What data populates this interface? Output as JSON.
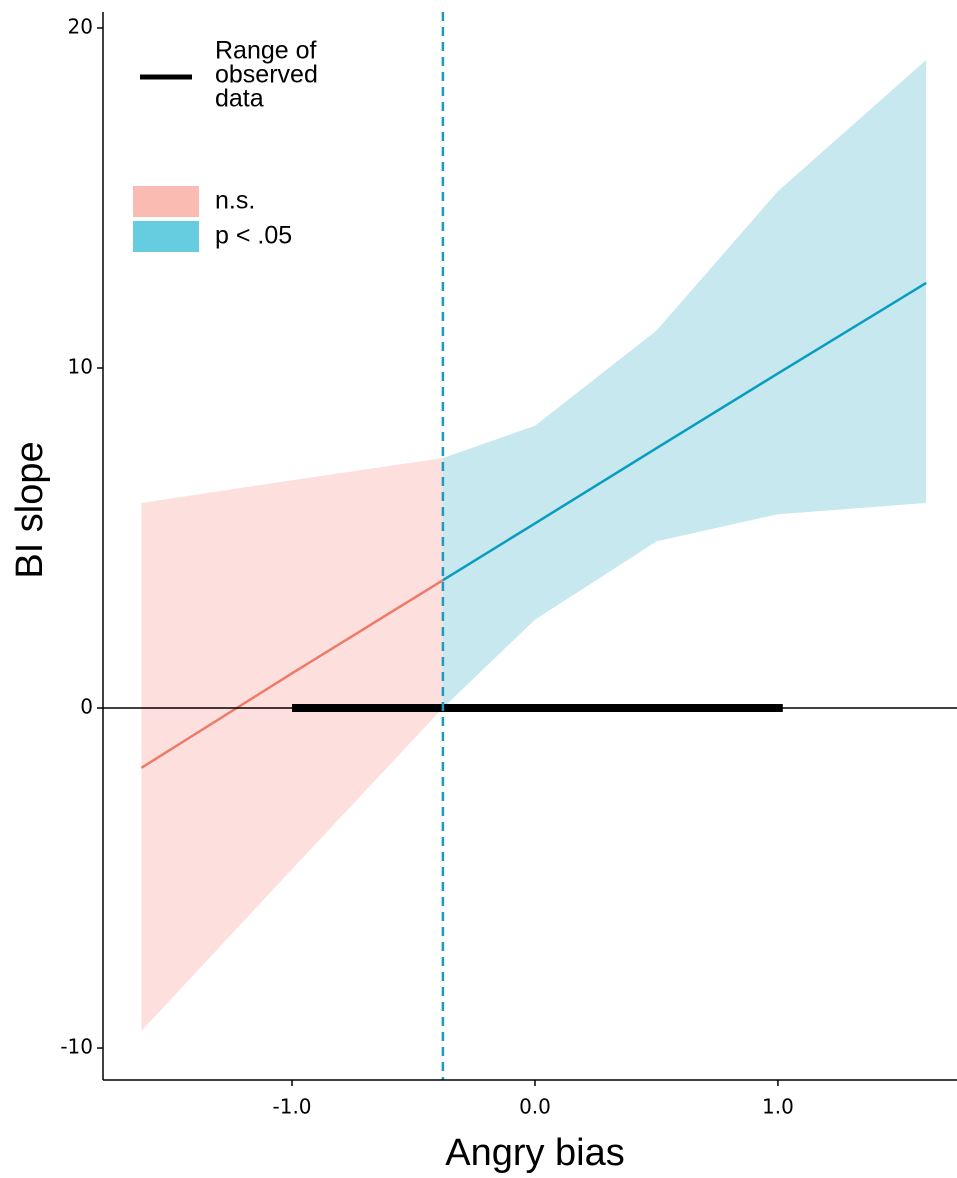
{
  "chart_data": {
    "type": "line",
    "x_label": "Angry bias",
    "y_label": "BI slope",
    "xlim": [
      -1.778,
      1.737
    ],
    "ylim": [
      -10.94,
      20.47
    ],
    "xticks": [
      {
        "value": -1,
        "label": "-1.0"
      },
      {
        "value": 0,
        "label": "0.0"
      },
      {
        "value": 1,
        "label": "1.0"
      }
    ],
    "yticks": [
      20,
      10,
      0,
      -10
    ],
    "threshold": -0.379,
    "threshold_color": "#1a9bc0",
    "reference_line": 0,
    "observed_range": {
      "label_lines": [
        "Range of",
        "observed",
        "data"
      ],
      "x": [
        -1.0,
        1.02
      ],
      "y": 0,
      "color": "#000000"
    },
    "series": [
      {
        "name": "n.s.",
        "color": "#f07a6a",
        "band_color": "#fde0dd",
        "legend_color": "#f9bbb2",
        "x": [
          -1.62,
          -1.0,
          -0.379
        ],
        "values": [
          -1.76,
          1.02,
          3.76
        ],
        "lower": [
          -9.5,
          -4.74,
          0
        ],
        "upper": [
          6.03,
          6.7,
          7.35
        ]
      },
      {
        "name": "p < .05",
        "color": "#0a9cc0",
        "band_color": "#c6e8ee",
        "legend_color": "#66cde0",
        "x": [
          -0.379,
          0,
          0.5,
          1.0,
          1.61
        ],
        "values": [
          3.76,
          5.43,
          7.64,
          9.84,
          12.5
        ],
        "lower": [
          0,
          2.6,
          4.9,
          5.7,
          6.03
        ],
        "upper": [
          7.35,
          8.3,
          11.1,
          15.2,
          19.06
        ]
      }
    ]
  }
}
